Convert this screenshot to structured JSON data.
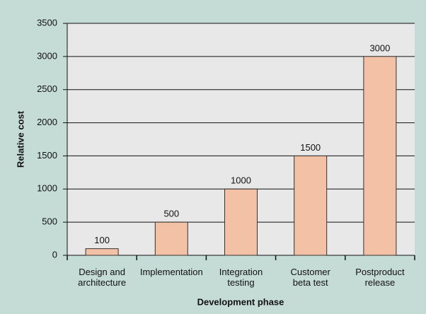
{
  "chart_data": {
    "type": "bar",
    "categories": [
      "Design and architecture",
      "Implementation",
      "Integration testing",
      "Customer beta test",
      "Postproduct release"
    ],
    "values": [
      100,
      500,
      1000,
      1500,
      3000
    ],
    "color": "#f2c1a6",
    "x_label": "Development phase",
    "y_label": "Relative cost",
    "ylim": [
      0,
      3500
    ],
    "yticks": [
      0,
      500,
      1000,
      1500,
      2000,
      2500,
      3000,
      3500
    ],
    "grid": true
  }
}
